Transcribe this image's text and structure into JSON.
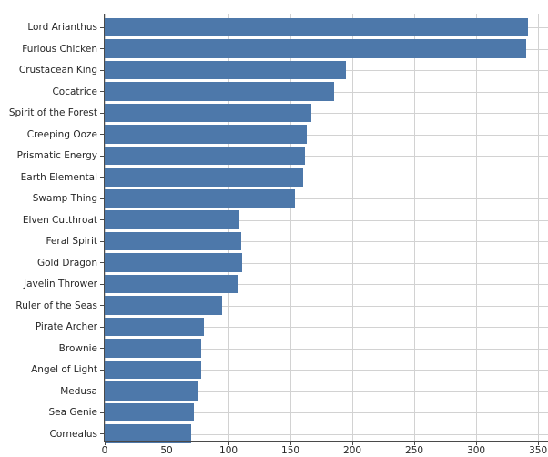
{
  "chart_data": {
    "type": "bar",
    "orientation": "horizontal",
    "title": "",
    "xlabel": "",
    "ylabel": "",
    "categories": [
      "Lord Arianthus",
      "Furious Chicken",
      "Crustacean King",
      "Cocatrice",
      "Spirit of the Forest",
      "Creeping Ooze",
      "Prismatic Energy",
      "Earth Elemental",
      "Swamp Thing",
      "Elven Cutthroat",
      "Feral Spirit",
      "Gold Dragon",
      "Javelin Thrower",
      "Ruler of the Seas",
      "Pirate Archer",
      "Brownie",
      "Angel of Light",
      "Medusa",
      "Sea Genie",
      "Cornealus"
    ],
    "values": [
      342,
      340,
      195,
      185,
      167,
      163,
      162,
      160,
      154,
      109,
      110,
      111,
      107,
      95,
      80,
      78,
      78,
      76,
      72,
      70
    ],
    "xticks": [
      0,
      50,
      100,
      150,
      200,
      250,
      300,
      350
    ],
    "xtick_labels": [
      "0",
      "50",
      "100",
      "150",
      "200",
      "250",
      "300",
      "350"
    ],
    "xlim": [
      0,
      358
    ],
    "grid": true,
    "legend_position": "none",
    "bar_color": "#4d78aa",
    "grid_color": "#d2d2d2",
    "axis_color": "#4a4a4a",
    "text_color": "#262626",
    "background_color": "#ffffff"
  }
}
